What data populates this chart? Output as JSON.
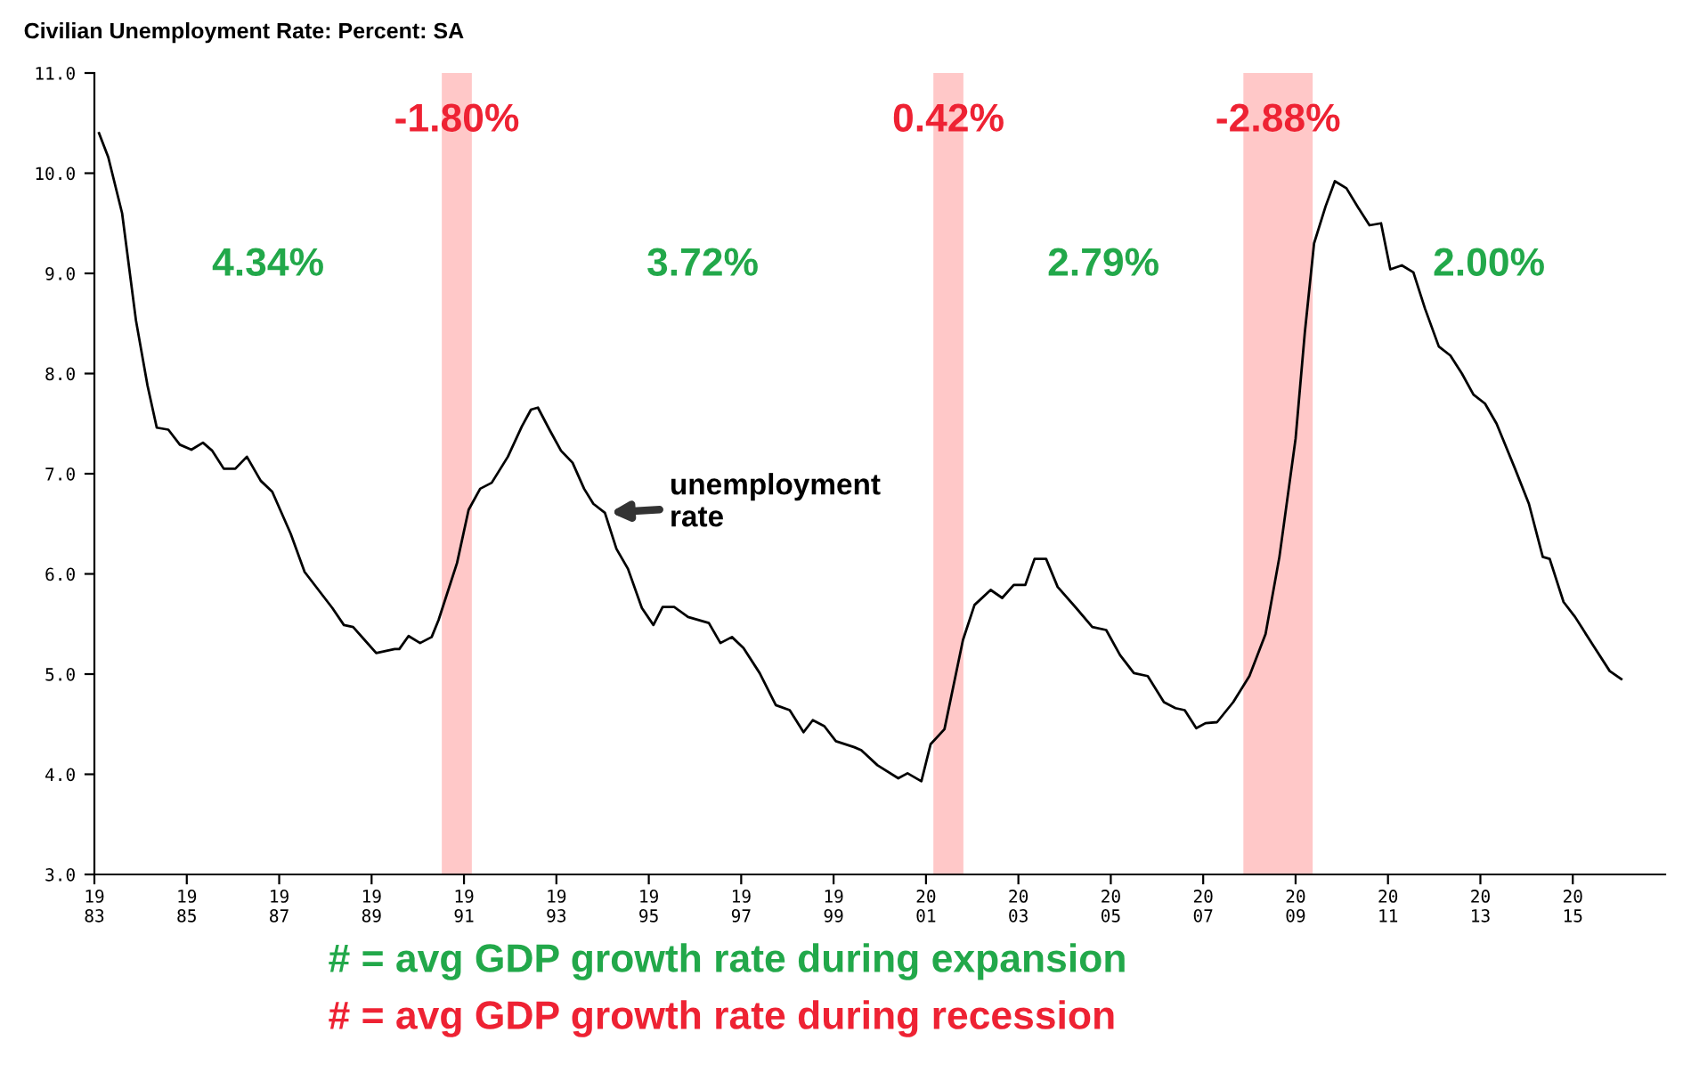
{
  "chart_data": {
    "type": "line",
    "title": "Civilian Unemployment Rate: Percent: SA",
    "xlim": [
      1983,
      2017
    ],
    "ylim": [
      3.0,
      11.0
    ],
    "xticks": [
      1983,
      1985,
      1987,
      1989,
      1991,
      1993,
      1995,
      1997,
      1999,
      2001,
      2003,
      2005,
      2007,
      2009,
      2011,
      2013,
      2015
    ],
    "yticks": [
      {
        "value": 3.0,
        "label": "3.0"
      },
      {
        "value": 4.0,
        "label": "4.0"
      },
      {
        "value": 5.0,
        "label": "5.0"
      },
      {
        "value": 6.0,
        "label": "6.0"
      },
      {
        "value": 7.0,
        "label": "7.0"
      },
      {
        "value": 8.0,
        "label": "8.0"
      },
      {
        "value": 9.0,
        "label": "9.0"
      },
      {
        "value": 10.0,
        "label": "10.0"
      },
      {
        "value": 11.0,
        "label": "11.0"
      }
    ],
    "grid": false,
    "marker": "none",
    "line_style": "solid",
    "series": [
      {
        "name": "unemployment rate",
        "color": "#000000",
        "x": [
          1983.1,
          1983.3,
          1983.6,
          1983.9,
          1984.15,
          1984.35,
          1984.6,
          1984.85,
          1985.1,
          1985.35,
          1985.55,
          1985.8,
          1986.05,
          1986.3,
          1986.6,
          1986.85,
          1987.25,
          1987.55,
          1987.95,
          1988.15,
          1988.4,
          1988.6,
          1988.85,
          1989.1,
          1989.5,
          1989.6,
          1989.8,
          1990.05,
          1990.3,
          1990.45,
          1990.85,
          1991.1,
          1991.35,
          1991.6,
          1991.95,
          1992.25,
          1992.45,
          1992.6,
          1992.85,
          1993.1,
          1993.35,
          1993.6,
          1993.8,
          1994.05,
          1994.3,
          1994.55,
          1994.85,
          1995.1,
          1995.3,
          1995.55,
          1995.85,
          1996.3,
          1996.55,
          1996.8,
          1997.05,
          1997.4,
          1997.75,
          1998.05,
          1998.35,
          1998.55,
          1998.8,
          1999.05,
          1999.45,
          1999.6,
          1999.95,
          2000.4,
          2000.6,
          2000.9,
          2001.1,
          2001.4,
          2001.8,
          2002.05,
          2002.4,
          2002.65,
          2002.9,
          2003.15,
          2003.35,
          2003.6,
          2003.85,
          2004.25,
          2004.6,
          2004.9,
          2005.2,
          2005.5,
          2005.8,
          2006.15,
          2006.4,
          2006.6,
          2006.85,
          2007.05,
          2007.3,
          2007.65,
          2008.0,
          2008.35,
          2008.65,
          2009.0,
          2009.2,
          2009.4,
          2009.65,
          2009.85,
          2010.1,
          2010.35,
          2010.6,
          2010.85,
          2011.05,
          2011.3,
          2011.55,
          2011.8,
          2012.1,
          2012.35,
          2012.6,
          2012.85,
          2013.1,
          2013.35,
          2013.75,
          2014.05,
          2014.35,
          2014.5,
          2014.8,
          2015.05,
          2015.45,
          2015.8,
          2016.05
        ],
        "values": [
          10.4,
          10.16,
          9.6,
          8.53,
          7.88,
          7.46,
          7.44,
          7.29,
          7.24,
          7.31,
          7.23,
          7.05,
          7.05,
          7.17,
          6.93,
          6.82,
          6.4,
          6.02,
          5.78,
          5.66,
          5.49,
          5.47,
          5.34,
          5.21,
          5.25,
          5.25,
          5.38,
          5.31,
          5.37,
          5.54,
          6.11,
          6.64,
          6.85,
          6.91,
          7.17,
          7.47,
          7.64,
          7.66,
          7.44,
          7.23,
          7.11,
          6.85,
          6.7,
          6.61,
          6.25,
          6.05,
          5.66,
          5.49,
          5.67,
          5.67,
          5.57,
          5.51,
          5.31,
          5.37,
          5.26,
          5.01,
          4.69,
          4.64,
          4.42,
          4.54,
          4.48,
          4.33,
          4.27,
          4.24,
          4.09,
          3.96,
          4.01,
          3.93,
          4.3,
          4.45,
          5.34,
          5.69,
          5.84,
          5.76,
          5.89,
          5.89,
          6.15,
          6.15,
          5.87,
          5.66,
          5.47,
          5.44,
          5.19,
          5.01,
          4.98,
          4.72,
          4.66,
          4.64,
          4.46,
          4.51,
          4.52,
          4.72,
          4.98,
          5.4,
          6.17,
          7.35,
          8.41,
          9.3,
          9.67,
          9.92,
          9.85,
          9.66,
          9.48,
          9.5,
          9.04,
          9.08,
          9.01,
          8.65,
          8.27,
          8.18,
          8.0,
          7.79,
          7.7,
          7.5,
          7.05,
          6.7,
          6.17,
          6.15,
          5.72,
          5.57,
          5.28,
          5.03,
          4.95
        ]
      }
    ],
    "bands": [
      {
        "axis": "x",
        "from": 1990.52,
        "to": 1991.17,
        "label": "-1.80%",
        "color": "#ffc8c8"
      },
      {
        "axis": "x",
        "from": 2001.16,
        "to": 2001.81,
        "label": "0.42%",
        "color": "#ffc8c8"
      },
      {
        "axis": "x",
        "from": 2007.87,
        "to": 2009.37,
        "label": "-2.88%",
        "color": "#ffc8c8"
      }
    ],
    "annotations": [
      "4.34%",
      "3.72%",
      "2.79%",
      "2.00%",
      "# = avg GDP growth rate during expansion",
      "# = avg GDP growth rate during recession"
    ]
  }
}
